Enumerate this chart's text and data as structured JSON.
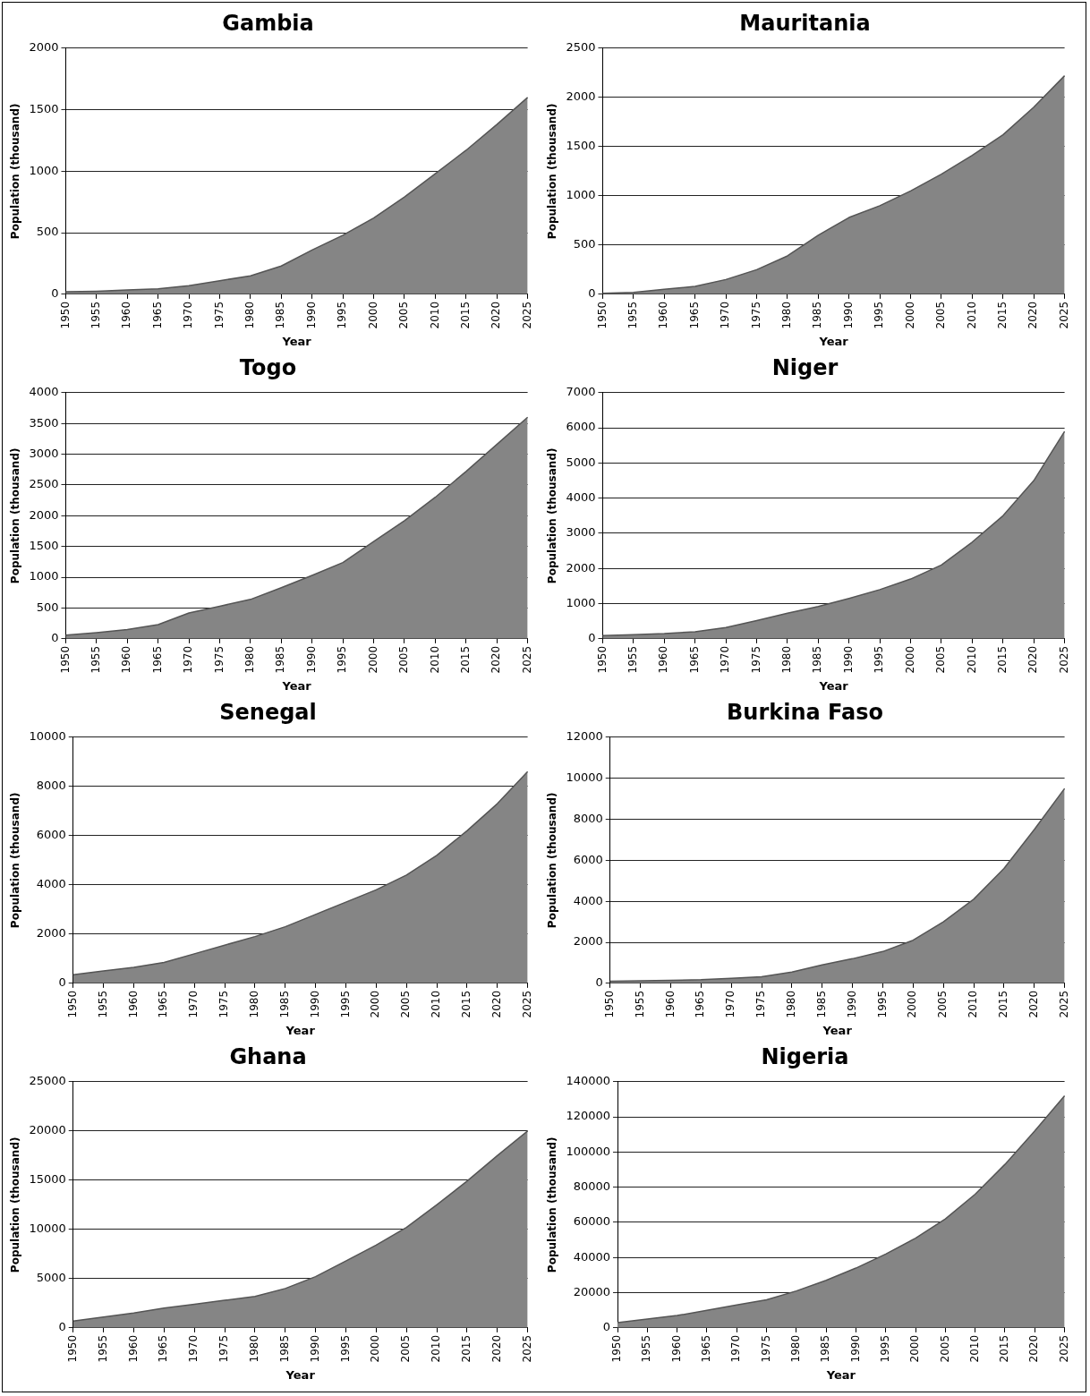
{
  "chart_data": [
    {
      "type": "area",
      "title": "Gambia",
      "xlabel": "Year",
      "ylabel": "Population (thousand)",
      "categories": [
        "1950",
        "1955",
        "1960",
        "1965",
        "1970",
        "1975",
        "1980",
        "1985",
        "1990",
        "1995",
        "2000",
        "2005",
        "2010",
        "2015",
        "2020",
        "2025"
      ],
      "values": [
        20,
        25,
        35,
        45,
        70,
        110,
        150,
        230,
        360,
        480,
        620,
        790,
        980,
        1170,
        1380,
        1600
      ],
      "color": "#858585",
      "ylim": [
        0,
        2000
      ],
      "yticks": [
        0,
        500,
        1000,
        1500,
        2000
      ],
      "grid": "y"
    },
    {
      "type": "area",
      "title": "Mauritania",
      "xlabel": "Year",
      "ylabel": "Population (thousand)",
      "categories": [
        "1950",
        "1955",
        "1960",
        "1965",
        "1970",
        "1975",
        "1980",
        "1985",
        "1990",
        "1995",
        "2000",
        "2005",
        "2010",
        "2015",
        "2020",
        "2025"
      ],
      "values": [
        10,
        20,
        50,
        80,
        150,
        250,
        390,
        600,
        780,
        900,
        1050,
        1220,
        1410,
        1620,
        1900,
        2220
      ],
      "color": "#858585",
      "ylim": [
        0,
        2500
      ],
      "yticks": [
        0,
        500,
        1000,
        1500,
        2000,
        2500
      ],
      "grid": "y"
    },
    {
      "type": "area",
      "title": "Togo",
      "xlabel": "Year",
      "ylabel": "Population (thousand)",
      "categories": [
        "1950",
        "1955",
        "1960",
        "1965",
        "1970",
        "1975",
        "1980",
        "1985",
        "1990",
        "1995",
        "2000",
        "2005",
        "2010",
        "2015",
        "2020",
        "2025"
      ],
      "values": [
        60,
        100,
        150,
        230,
        420,
        530,
        640,
        830,
        1030,
        1240,
        1580,
        1920,
        2300,
        2720,
        3160,
        3600
      ],
      "color": "#858585",
      "ylim": [
        0,
        4000
      ],
      "yticks": [
        0,
        500,
        1000,
        1500,
        2000,
        2500,
        3000,
        3500,
        4000
      ],
      "grid": "y"
    },
    {
      "type": "area",
      "title": "Niger",
      "xlabel": "Year",
      "ylabel": "Population (thousand)",
      "categories": [
        "1950",
        "1955",
        "1960",
        "1965",
        "1970",
        "1975",
        "1980",
        "1985",
        "1990",
        "1995",
        "2000",
        "2005",
        "2010",
        "2015",
        "2020",
        "2025"
      ],
      "values": [
        90,
        120,
        150,
        200,
        320,
        520,
        730,
        920,
        1150,
        1400,
        1700,
        2100,
        2750,
        3500,
        4500,
        5900
      ],
      "color": "#858585",
      "ylim": [
        0,
        7000
      ],
      "yticks": [
        0,
        1000,
        2000,
        3000,
        4000,
        5000,
        6000,
        7000
      ],
      "grid": "y"
    },
    {
      "type": "area",
      "title": "Senegal",
      "xlabel": "Year",
      "ylabel": "Population (thousand)",
      "categories": [
        "1950",
        "1955",
        "1960",
        "1965",
        "1970",
        "1975",
        "1980",
        "1985",
        "1990",
        "1995",
        "2000",
        "2005",
        "2010",
        "2015",
        "2020",
        "2025"
      ],
      "values": [
        350,
        500,
        650,
        850,
        1200,
        1550,
        1900,
        2300,
        2800,
        3300,
        3800,
        4400,
        5200,
        6200,
        7300,
        8600
      ],
      "color": "#858585",
      "ylim": [
        0,
        10000
      ],
      "yticks": [
        0,
        2000,
        4000,
        6000,
        8000,
        10000
      ],
      "grid": "y"
    },
    {
      "type": "area",
      "title": "Burkina Faso",
      "xlabel": "Year",
      "ylabel": "Population (thousand)",
      "categories": [
        "1950",
        "1955",
        "1960",
        "1965",
        "1970",
        "1975",
        "1980",
        "1985",
        "1990",
        "1995",
        "2000",
        "2005",
        "2010",
        "2015",
        "2020",
        "2025"
      ],
      "values": [
        100,
        120,
        150,
        180,
        250,
        320,
        550,
        900,
        1200,
        1550,
        2100,
        3000,
        4100,
        5600,
        7500,
        9500
      ],
      "color": "#858585",
      "ylim": [
        0,
        12000
      ],
      "yticks": [
        0,
        2000,
        4000,
        6000,
        8000,
        10000,
        12000
      ],
      "grid": "y"
    },
    {
      "type": "area",
      "title": "Ghana",
      "xlabel": "Year",
      "ylabel": "Population (thousand)",
      "categories": [
        "1950",
        "1955",
        "1960",
        "1965",
        "1970",
        "1975",
        "1980",
        "1985",
        "1990",
        "1995",
        "2000",
        "2005",
        "2010",
        "2015",
        "2020",
        "2025"
      ],
      "values": [
        700,
        1100,
        1500,
        2000,
        2400,
        2800,
        3200,
        4000,
        5200,
        6800,
        8400,
        10200,
        12500,
        14900,
        17500,
        20000
      ],
      "color": "#858585",
      "ylim": [
        0,
        25000
      ],
      "yticks": [
        0,
        5000,
        10000,
        15000,
        20000,
        25000
      ],
      "grid": "y"
    },
    {
      "type": "area",
      "title": "Nigeria",
      "xlabel": "Year",
      "ylabel": "Population (thousand)",
      "categories": [
        "1950",
        "1955",
        "1960",
        "1965",
        "1970",
        "1975",
        "1980",
        "1985",
        "1990",
        "1995",
        "2000",
        "2005",
        "2010",
        "2015",
        "2020",
        "2025"
      ],
      "values": [
        3000,
        5000,
        7000,
        10000,
        13000,
        16000,
        21000,
        27000,
        34000,
        42000,
        51000,
        62000,
        76000,
        93000,
        112000,
        132000
      ],
      "color": "#858585",
      "ylim": [
        0,
        140000
      ],
      "yticks": [
        0,
        20000,
        40000,
        60000,
        80000,
        100000,
        120000,
        140000
      ],
      "grid": "y"
    }
  ]
}
